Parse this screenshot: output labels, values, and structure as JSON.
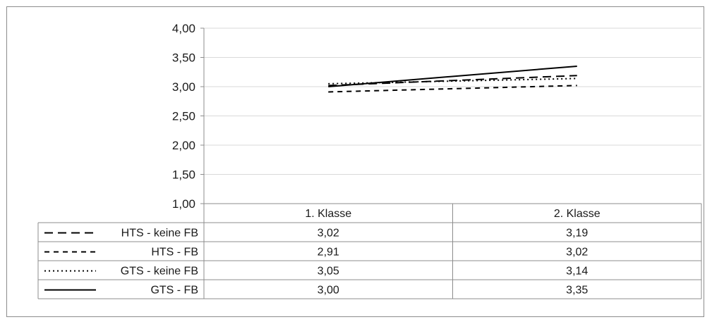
{
  "chart_data": {
    "type": "line",
    "categories": [
      "1. Klasse",
      "2. Klasse"
    ],
    "ylim": [
      1.0,
      4.0
    ],
    "yticks": [
      "1,00",
      "1,50",
      "2,00",
      "2,50",
      "3,00",
      "3,50",
      "4,00"
    ],
    "ytick_values": [
      1.0,
      1.5,
      2.0,
      2.5,
      3.0,
      3.5,
      4.0
    ],
    "grid": true,
    "legend_placement": "data-table-left",
    "series": [
      {
        "name": "HTS - keine FB",
        "values": [
          3.02,
          3.19
        ],
        "value_labels": [
          "3,02",
          "3,19"
        ],
        "style": "long-dash",
        "color": "#000000"
      },
      {
        "name": "HTS - FB",
        "values": [
          2.91,
          3.02
        ],
        "value_labels": [
          "2,91",
          "3,02"
        ],
        "style": "short-dash",
        "color": "#000000"
      },
      {
        "name": "GTS - keine FB",
        "values": [
          3.05,
          3.14
        ],
        "value_labels": [
          "3,05",
          "3,14"
        ],
        "style": "dotted",
        "color": "#000000"
      },
      {
        "name": "GTS - FB",
        "values": [
          3.0,
          3.35
        ],
        "value_labels": [
          "3,00",
          "3,35"
        ],
        "style": "solid",
        "color": "#000000"
      }
    ],
    "title": "",
    "xlabel": "",
    "ylabel": "",
    "colors": {
      "grid": "#d9d9d9",
      "table_border": "#8c8c8c",
      "axis": "#8c8c8c"
    }
  }
}
